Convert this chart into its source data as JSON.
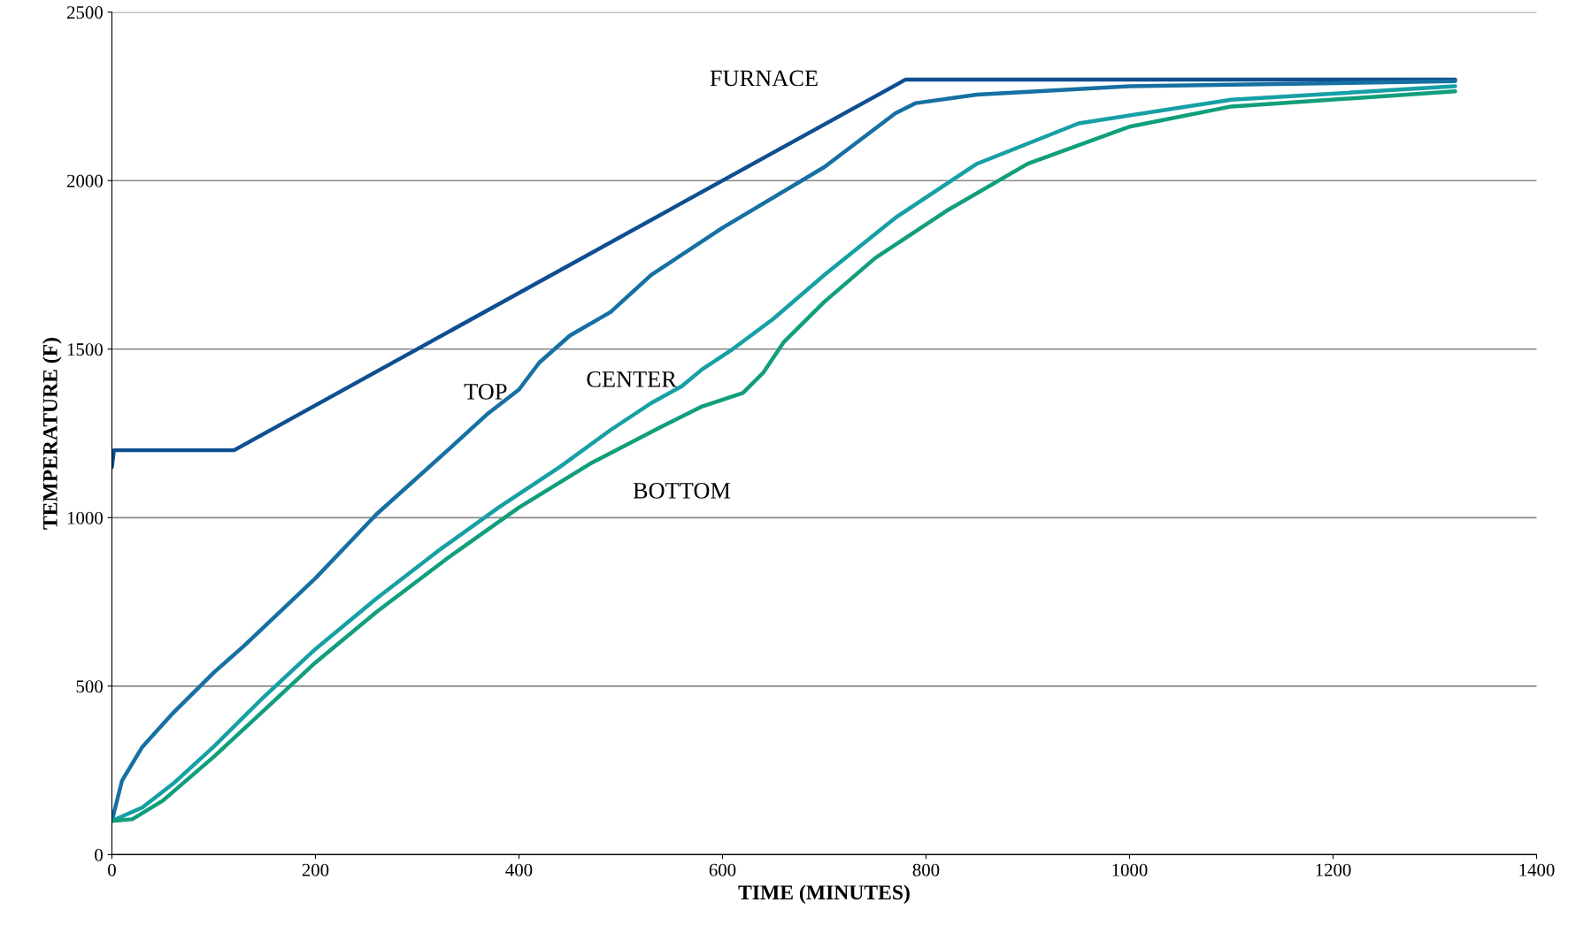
{
  "chart_data": {
    "type": "line",
    "xlabel": "TIME (MINUTES)",
    "ylabel": "TEMPERATURE (F)",
    "xlim": [
      0,
      1400
    ],
    "xticks": [
      0,
      200,
      400,
      600,
      800,
      1000,
      1200,
      1400
    ],
    "ylim": [
      0,
      2500
    ],
    "yticks": [
      0,
      500,
      1000,
      1500,
      2000,
      2500
    ],
    "grid": "y",
    "marker": "none",
    "line_style": "solid",
    "series": [
      {
        "name": "FURNACE",
        "color": "#0f4f91",
        "x": [
          0,
          2,
          120,
          780,
          1320
        ],
        "values": [
          1150,
          1200,
          1200,
          2300,
          2300
        ]
      },
      {
        "name": "TOP",
        "color": "#1670a3",
        "x": [
          0,
          10,
          30,
          60,
          100,
          130,
          200,
          260,
          330,
          370,
          400,
          420,
          450,
          490,
          530,
          600,
          700,
          770,
          790,
          850,
          1000,
          1320
        ],
        "values": [
          100,
          220,
          320,
          420,
          540,
          620,
          820,
          1010,
          1200,
          1310,
          1380,
          1460,
          1540,
          1610,
          1720,
          1860,
          2040,
          2200,
          2230,
          2255,
          2280,
          2295
        ]
      },
      {
        "name": "CENTER",
        "color": "#16a0a6",
        "x": [
          0,
          30,
          60,
          100,
          150,
          200,
          260,
          320,
          380,
          440,
          490,
          530,
          560,
          580,
          610,
          650,
          700,
          770,
          850,
          950,
          1100,
          1320
        ],
        "values": [
          100,
          140,
          210,
          320,
          470,
          610,
          760,
          900,
          1030,
          1150,
          1260,
          1340,
          1390,
          1440,
          1500,
          1590,
          1720,
          1890,
          2050,
          2170,
          2240,
          2280
        ]
      },
      {
        "name": "BOTTOM",
        "color": "#119e7c",
        "x": [
          0,
          20,
          50,
          100,
          150,
          200,
          260,
          330,
          400,
          470,
          540,
          580,
          620,
          640,
          660,
          700,
          750,
          820,
          900,
          1000,
          1100,
          1320
        ],
        "values": [
          100,
          105,
          160,
          290,
          430,
          570,
          720,
          880,
          1030,
          1160,
          1270,
          1330,
          1370,
          1430,
          1520,
          1640,
          1770,
          1910,
          2050,
          2160,
          2220,
          2265
        ]
      }
    ]
  }
}
